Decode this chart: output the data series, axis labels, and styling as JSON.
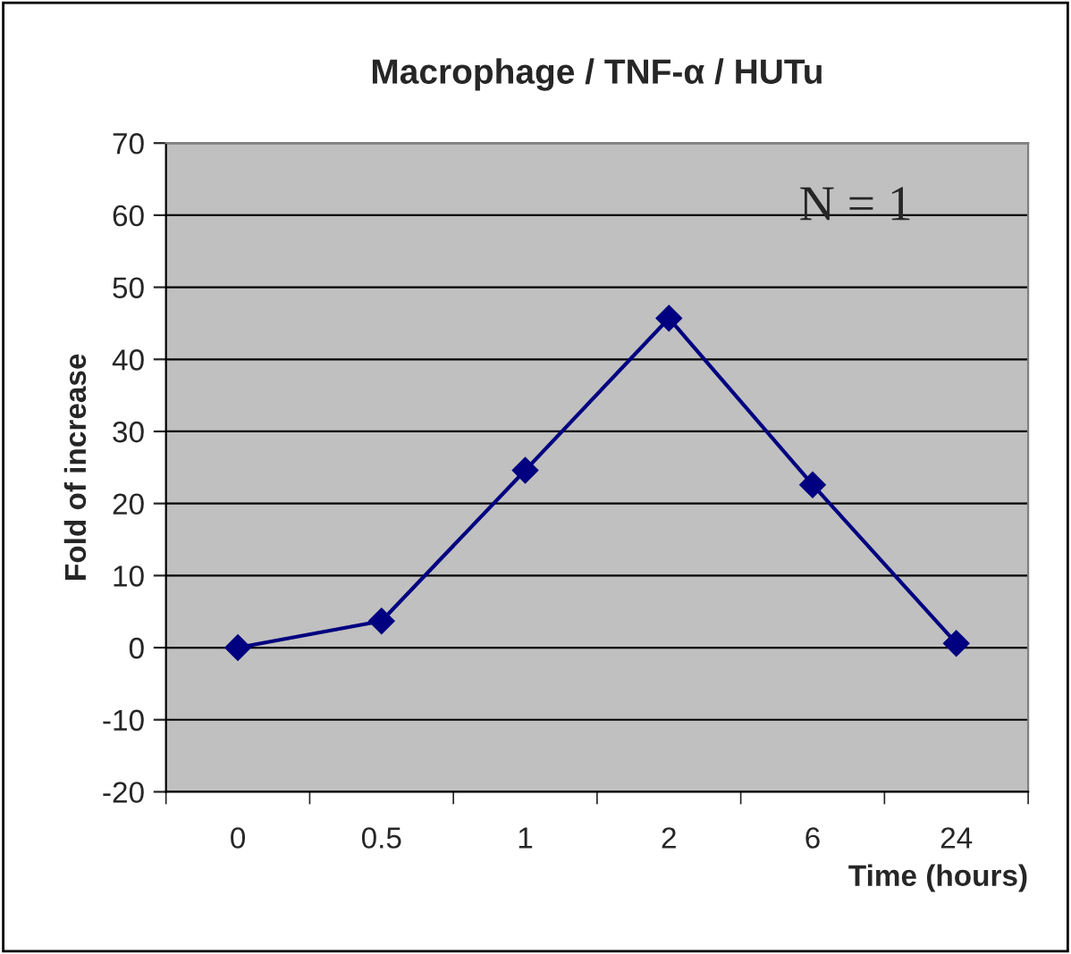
{
  "chart_data": {
    "type": "line",
    "title": "Macrophage / TNF-α / HUTu",
    "xlabel": "Time (hours)",
    "ylabel": "Fold of increase",
    "categories": [
      "0",
      "0.5",
      "1",
      "2",
      "6",
      "24"
    ],
    "series": [
      {
        "color": "#000080",
        "values": [
          0,
          3.7,
          24.6,
          45.7,
          22.6,
          0.6
        ]
      }
    ],
    "ylim": [
      -20,
      70
    ],
    "yticks": [
      -20,
      -10,
      0,
      10,
      20,
      30,
      40,
      50,
      60,
      70
    ],
    "grid": "y",
    "marker": "diamond",
    "line_style": "solid",
    "legend": false,
    "annotations": [
      "N = 1"
    ]
  }
}
